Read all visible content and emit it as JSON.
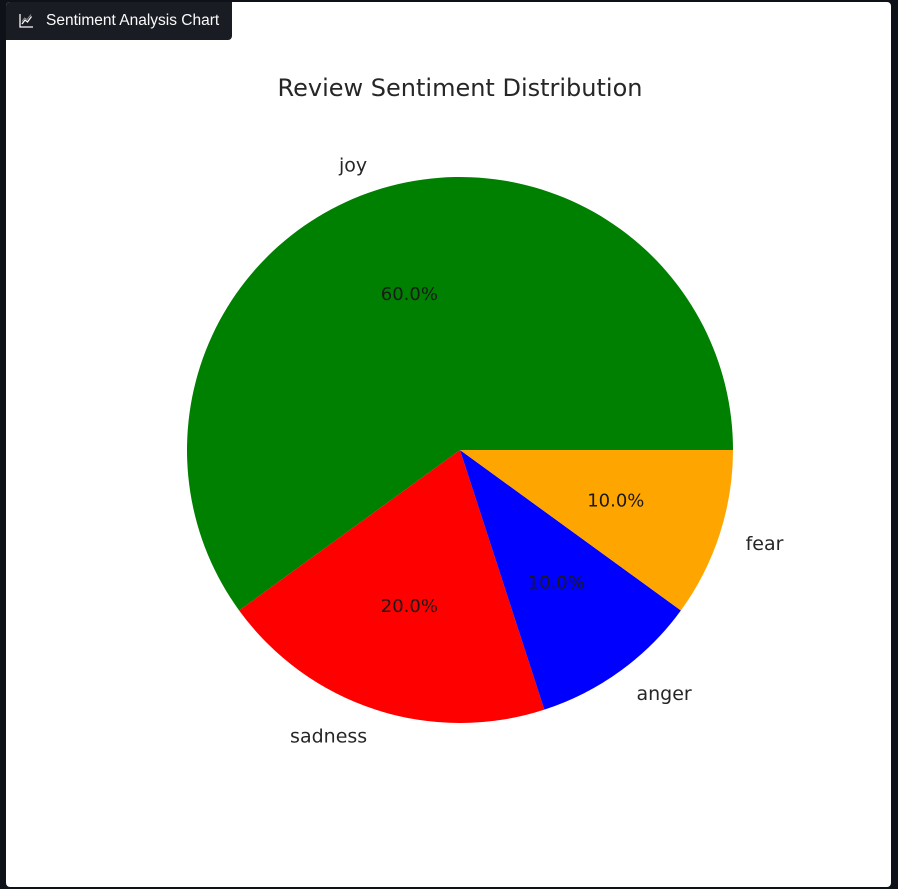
{
  "tab": {
    "title": "Sentiment Analysis Chart",
    "icon": "chart-line-icon"
  },
  "chart_data": {
    "type": "pie",
    "title": "Review Sentiment Distribution",
    "categories": [
      "joy",
      "sadness",
      "anger",
      "fear"
    ],
    "values": [
      60.0,
      20.0,
      10.0,
      10.0
    ],
    "percent_labels": [
      "60.0%",
      "20.0%",
      "10.0%",
      "10.0%"
    ],
    "colors": [
      "#008000",
      "#ff0000",
      "#0000ff",
      "#ffa500"
    ],
    "start_angle_deg": 0,
    "direction": "counterclockwise"
  }
}
